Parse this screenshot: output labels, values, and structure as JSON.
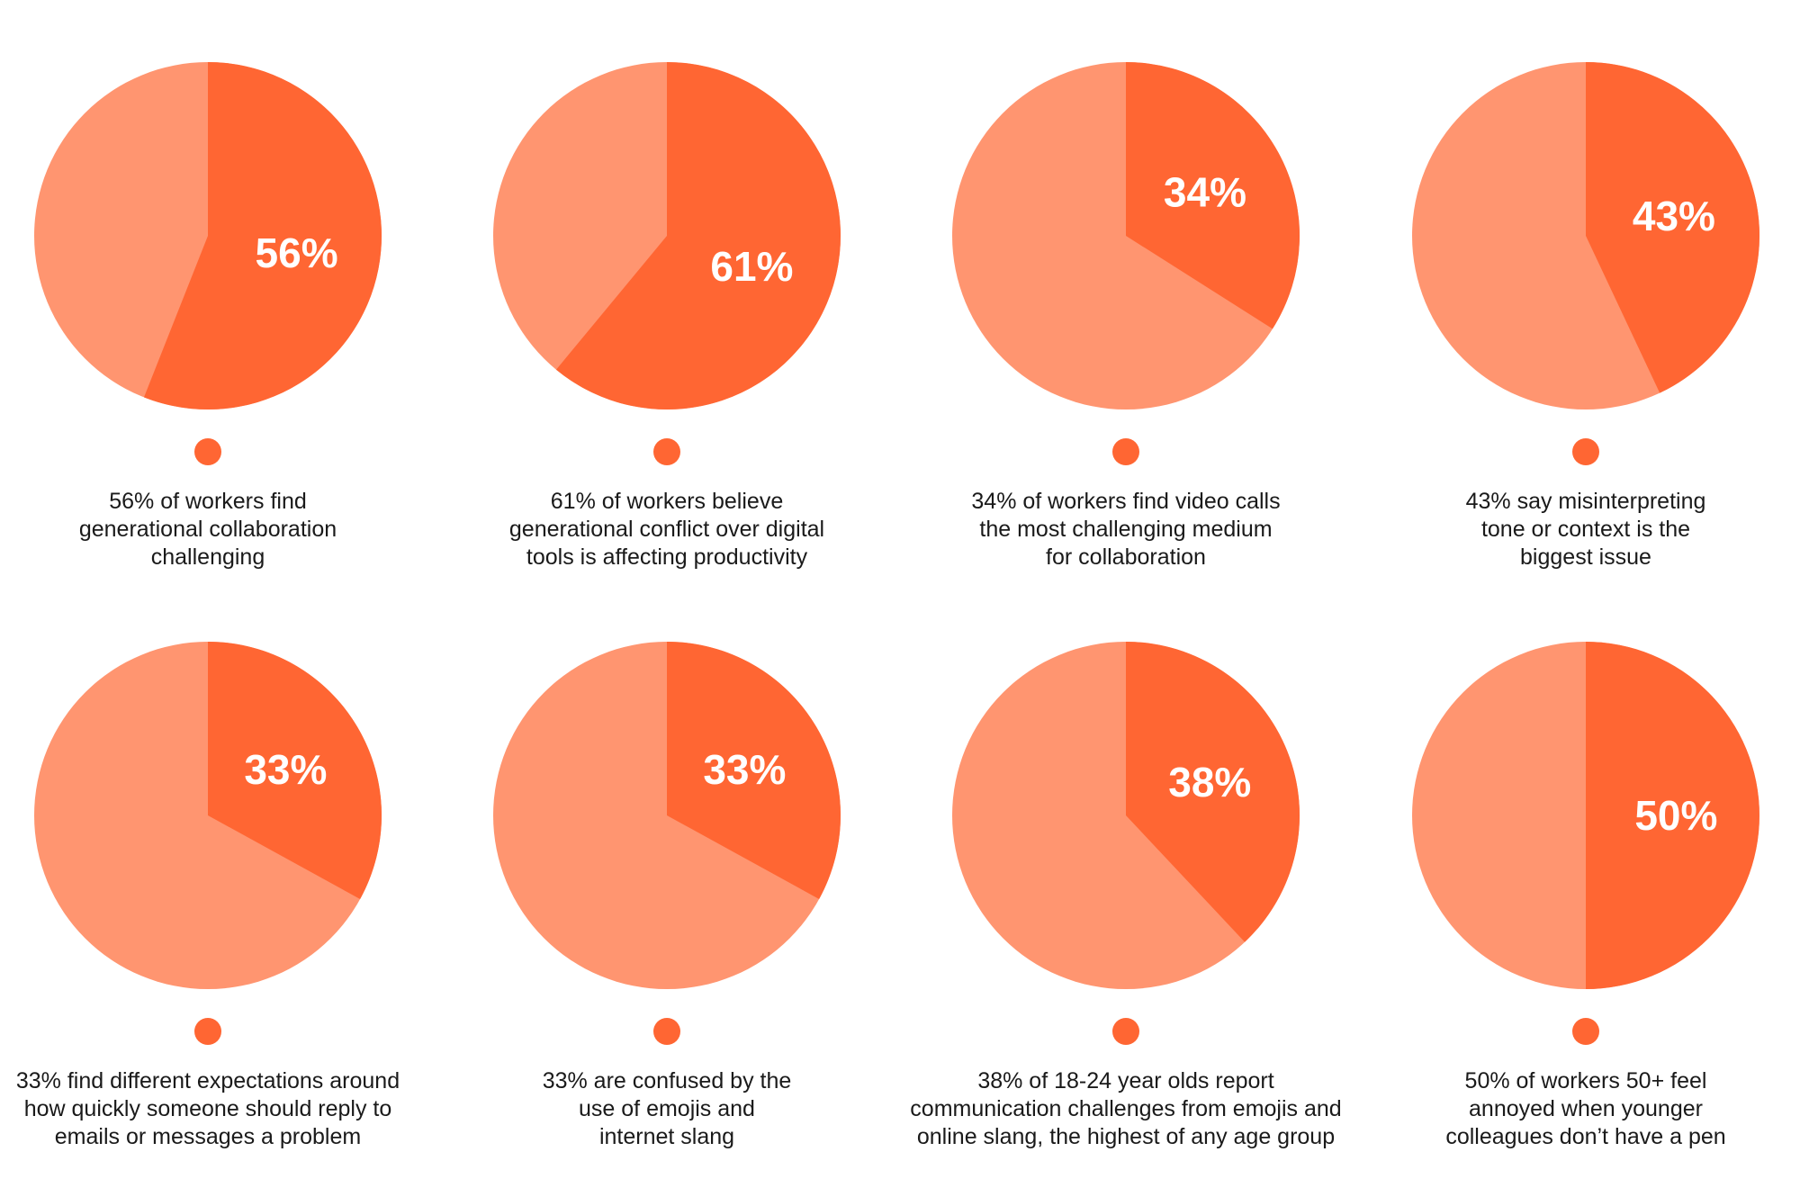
{
  "colors": {
    "accent": "#FF6633",
    "rest": "#FF9570",
    "caption": "#1A1A1A",
    "label": "#FFFFFF"
  },
  "chart_data": [
    {
      "type": "pie",
      "slices": [
        {
          "value": 56
        },
        {
          "value": 44
        }
      ],
      "data_label": "56%",
      "caption": [
        "56% of workers find",
        "generational collaboration",
        "challenging"
      ]
    },
    {
      "type": "pie",
      "slices": [
        {
          "value": 61
        },
        {
          "value": 39
        }
      ],
      "data_label": "61%",
      "caption": [
        "61% of workers believe",
        "generational conflict over digital",
        "tools is affecting productivity"
      ]
    },
    {
      "type": "pie",
      "slices": [
        {
          "value": 34
        },
        {
          "value": 66
        }
      ],
      "data_label": "34%",
      "caption": [
        "34% of workers find video calls",
        "the most challenging medium",
        "for collaboration"
      ]
    },
    {
      "type": "pie",
      "slices": [
        {
          "value": 43
        },
        {
          "value": 57
        }
      ],
      "data_label": "43%",
      "caption": [
        "43% say misinterpreting",
        "tone or context is the",
        "biggest issue"
      ]
    },
    {
      "type": "pie",
      "slices": [
        {
          "value": 33
        },
        {
          "value": 67
        }
      ],
      "data_label": "33%",
      "caption": [
        "33% find different expectations around",
        "how quickly someone should reply to",
        "emails or messages a problem"
      ]
    },
    {
      "type": "pie",
      "slices": [
        {
          "value": 33
        },
        {
          "value": 67
        }
      ],
      "data_label": "33%",
      "caption": [
        "33% are confused by the",
        "use of emojis and",
        "internet slang"
      ]
    },
    {
      "type": "pie",
      "slices": [
        {
          "value": 38
        },
        {
          "value": 62
        }
      ],
      "data_label": "38%",
      "caption": [
        "38% of 18-24 year olds report",
        "communication challenges from emojis and",
        "online slang, the highest of any age group"
      ]
    },
    {
      "type": "pie",
      "slices": [
        {
          "value": 50
        },
        {
          "value": 50
        }
      ],
      "data_label": "50%",
      "caption": [
        "50% of workers 50+ feel",
        "annoyed when younger",
        "colleagues don’t have a pen"
      ]
    }
  ]
}
